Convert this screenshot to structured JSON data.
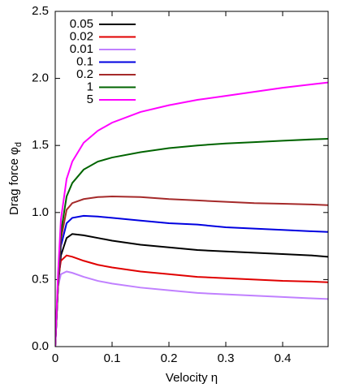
{
  "chart_data": {
    "type": "line",
    "x_label": "Velocity η",
    "y_label": {
      "text": "Drag force φ",
      "subscript": "d"
    },
    "x": [
      0,
      0.005,
      0.01,
      0.02,
      0.03,
      0.05,
      0.075,
      0.1,
      0.15,
      0.2,
      0.25,
      0.3,
      0.35,
      0.4,
      0.45,
      0.48
    ],
    "series": [
      {
        "name": "0.05",
        "color": "#000000",
        "values": [
          0,
          0.45,
          0.68,
          0.81,
          0.84,
          0.83,
          0.81,
          0.79,
          0.76,
          0.74,
          0.72,
          0.71,
          0.7,
          0.69,
          0.68,
          0.67
        ]
      },
      {
        "name": "0.02",
        "color": "#e00000",
        "values": [
          0,
          0.5,
          0.64,
          0.68,
          0.67,
          0.64,
          0.61,
          0.59,
          0.56,
          0.54,
          0.52,
          0.51,
          0.5,
          0.49,
          0.485,
          0.48
        ]
      },
      {
        "name": "0.01",
        "color": "#c080ff",
        "values": [
          0,
          0.45,
          0.54,
          0.56,
          0.55,
          0.52,
          0.49,
          0.47,
          0.44,
          0.42,
          0.4,
          0.39,
          0.38,
          0.37,
          0.36,
          0.355
        ]
      },
      {
        "name": "0.1",
        "color": "#0000e0",
        "values": [
          0,
          0.45,
          0.75,
          0.92,
          0.96,
          0.975,
          0.97,
          0.96,
          0.94,
          0.92,
          0.91,
          0.89,
          0.88,
          0.87,
          0.86,
          0.855
        ]
      },
      {
        "name": "0.2",
        "color": "#a52a2a",
        "values": [
          0,
          0.45,
          0.8,
          1.02,
          1.07,
          1.1,
          1.115,
          1.12,
          1.115,
          1.1,
          1.09,
          1.08,
          1.07,
          1.065,
          1.06,
          1.055
        ]
      },
      {
        "name": "1",
        "color": "#006400",
        "values": [
          0,
          0.5,
          0.85,
          1.12,
          1.22,
          1.32,
          1.38,
          1.41,
          1.45,
          1.48,
          1.5,
          1.515,
          1.525,
          1.535,
          1.545,
          1.55
        ]
      },
      {
        "name": "5",
        "color": "#ff00ff",
        "values": [
          0,
          0.55,
          0.95,
          1.25,
          1.38,
          1.52,
          1.61,
          1.67,
          1.75,
          1.8,
          1.84,
          1.87,
          1.9,
          1.93,
          1.955,
          1.97
        ]
      }
    ],
    "xlim": [
      0,
      0.48
    ],
    "xticks": [
      {
        "value": 0,
        "label": "0"
      },
      0.1,
      0.2,
      0.3,
      0.4
    ],
    "ylim": [
      0,
      2.5
    ],
    "yticks": [
      {
        "value": 0,
        "label": "0.0"
      },
      0.5,
      {
        "value": 1,
        "label": "1.0"
      },
      1.5,
      {
        "value": 2,
        "label": "2.0"
      },
      2.5
    ],
    "legend": "upper left"
  }
}
